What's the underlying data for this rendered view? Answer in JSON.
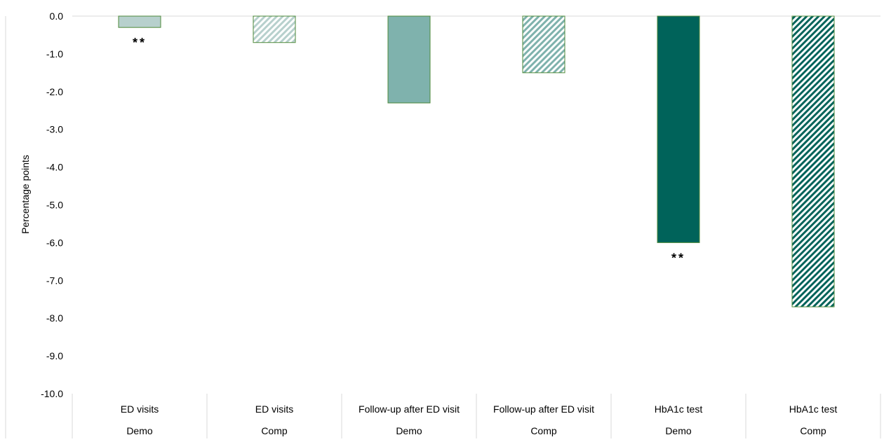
{
  "chart_data": {
    "type": "bar",
    "title": "",
    "xlabel": "",
    "ylabel": "Percentage points",
    "ylim": [
      -10.0,
      0.0
    ],
    "yticks": [
      "0.0",
      "-1.0",
      "-2.0",
      "-3.0",
      "-4.0",
      "-5.0",
      "-6.0",
      "-7.0",
      "-8.0",
      "-9.0",
      "-10.0"
    ],
    "grid": false,
    "legend": "none",
    "bars": [
      {
        "measure": "ED visits",
        "group": "Demo",
        "value": -0.3,
        "fill": "#b7d0cd",
        "hatched": false,
        "annotation": "**"
      },
      {
        "measure": "ED visits",
        "group": "Comp",
        "value": -0.7,
        "fill": "#b7d0cd",
        "hatched": true,
        "annotation": ""
      },
      {
        "measure": "Follow-up after ED visit",
        "group": "Demo",
        "value": -2.3,
        "fill": "#7fb2ad",
        "hatched": false,
        "annotation": ""
      },
      {
        "measure": "Follow-up after ED visit",
        "group": "Comp",
        "value": -1.5,
        "fill": "#7fb2ad",
        "hatched": true,
        "annotation": ""
      },
      {
        "measure": "HbA1c test",
        "group": "Demo",
        "value": -6.0,
        "fill": "#00635a",
        "hatched": false,
        "annotation": "**"
      },
      {
        "measure": "HbA1c test",
        "group": "Comp",
        "value": -7.7,
        "fill": "#00635a",
        "hatched": true,
        "annotation": ""
      }
    ],
    "colors": {
      "outline": "#4e8a3a",
      "axis": "#d9d9d9"
    }
  }
}
